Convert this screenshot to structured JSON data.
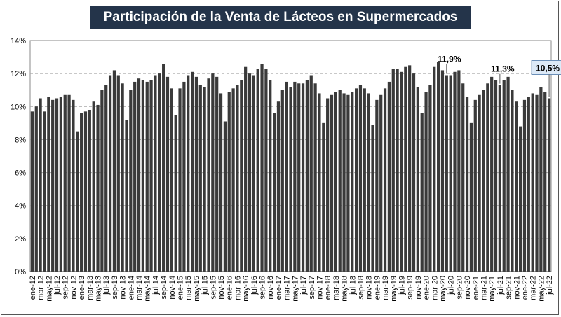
{
  "chart_data": {
    "type": "bar",
    "title": "Participación de la Venta de Lácteos en Supermercados",
    "xlabel": "",
    "ylabel": "",
    "ylim": [
      0,
      14
    ],
    "yticks": [
      "0%",
      "2%",
      "4%",
      "6%",
      "8%",
      "10%",
      "12%",
      "14%"
    ],
    "grid": true,
    "bar_color": "#3a3a3a",
    "categories": [
      "ene-12",
      "feb-12",
      "mar-12",
      "abr-12",
      "may-12",
      "jun-12",
      "jul-12",
      "ago-12",
      "sep-12",
      "oct-12",
      "nov-12",
      "dic-12",
      "ene-13",
      "feb-13",
      "mar-13",
      "abr-13",
      "may-13",
      "jun-13",
      "jul-13",
      "ago-13",
      "sep-13",
      "oct-13",
      "nov-13",
      "dic-13",
      "ene-14",
      "feb-14",
      "mar-14",
      "abr-14",
      "may-14",
      "jun-14",
      "jul-14",
      "ago-14",
      "sep-14",
      "oct-14",
      "nov-14",
      "dic-14",
      "ene-15",
      "feb-15",
      "mar-15",
      "abr-15",
      "may-15",
      "jun-15",
      "jul-15",
      "ago-15",
      "sep-15",
      "oct-15",
      "nov-15",
      "dic-15",
      "ene-16",
      "feb-16",
      "mar-16",
      "abr-16",
      "may-16",
      "jun-16",
      "jul-16",
      "ago-16",
      "sep-16",
      "oct-16",
      "nov-16",
      "dic-16",
      "ene-17",
      "feb-17",
      "mar-17",
      "abr-17",
      "may-17",
      "jun-17",
      "jul-17",
      "ago-17",
      "sep-17",
      "oct-17",
      "nov-17",
      "dic-17",
      "ene-18",
      "feb-18",
      "mar-18",
      "abr-18",
      "may-18",
      "jun-18",
      "jul-18",
      "ago-18",
      "sep-18",
      "oct-18",
      "nov-18",
      "dic-18",
      "ene-19",
      "feb-19",
      "mar-19",
      "abr-19",
      "may-19",
      "jun-19",
      "jul-19",
      "ago-19",
      "sep-19",
      "oct-19",
      "nov-19",
      "dic-19",
      "ene-20",
      "feb-20",
      "mar-20",
      "abr-20",
      "may-20",
      "jun-20",
      "jul-20",
      "ago-20",
      "sep-20",
      "oct-20",
      "nov-20",
      "dic-20",
      "ene-21",
      "feb-21",
      "mar-21",
      "abr-21",
      "may-21",
      "jun-21",
      "jul-21",
      "ago-21",
      "sep-21",
      "oct-21",
      "nov-21",
      "dic-21",
      "ene-22",
      "feb-22",
      "mar-22",
      "abr-22",
      "may-22",
      "jun-22",
      "jul-22"
    ],
    "x_tick_labels": [
      "ene-12",
      "mar-12",
      "may-12",
      "jul-12",
      "sep-12",
      "nov-12",
      "ene-13",
      "mar-13",
      "may-13",
      "jul-13",
      "sep-13",
      "nov-13",
      "ene-14",
      "mar-14",
      "may-14",
      "jul-14",
      "sep-14",
      "nov-14",
      "ene-15",
      "mar-15",
      "may-15",
      "jul-15",
      "sep-15",
      "nov-15",
      "ene-16",
      "mar-16",
      "may-16",
      "jul-16",
      "sep-16",
      "nov-16",
      "ene-17",
      "mar-17",
      "may-17",
      "jul-17",
      "sep-17",
      "nov-17",
      "ene-18",
      "mar-18",
      "may-18",
      "jul-18",
      "sep-18",
      "nov-18",
      "ene-19",
      "mar-19",
      "may-19",
      "jul-19",
      "sep-19",
      "nov-19",
      "ene-20",
      "mar-20",
      "may-20",
      "jul-20",
      "sep-20",
      "nov-20",
      "ene-21",
      "mar-21",
      "may-21",
      "jul-21",
      "sep-21",
      "nov-21",
      "ene-22",
      "mar-22",
      "may-22",
      "jul-22"
    ],
    "values": [
      9.7,
      10.0,
      10.5,
      9.7,
      10.6,
      10.4,
      10.5,
      10.6,
      10.7,
      10.7,
      10.4,
      8.5,
      9.6,
      9.7,
      9.8,
      10.3,
      10.1,
      11.0,
      11.3,
      11.9,
      12.2,
      11.9,
      11.4,
      9.2,
      11.0,
      11.5,
      11.7,
      11.6,
      11.5,
      11.6,
      11.9,
      12.0,
      12.6,
      11.8,
      11.1,
      9.5,
      11.1,
      11.5,
      11.9,
      12.1,
      11.8,
      11.3,
      11.2,
      11.7,
      12.0,
      11.8,
      10.8,
      9.1,
      10.9,
      11.1,
      11.3,
      11.6,
      12.4,
      12.0,
      11.9,
      12.3,
      12.6,
      12.3,
      11.6,
      9.6,
      10.3,
      11.0,
      11.5,
      11.2,
      11.5,
      11.4,
      11.4,
      11.6,
      11.9,
      11.4,
      10.8,
      9.0,
      10.5,
      10.7,
      10.9,
      11.0,
      10.8,
      10.7,
      10.9,
      11.1,
      11.3,
      11.1,
      10.8,
      8.9,
      10.4,
      10.7,
      11.1,
      11.5,
      12.3,
      12.3,
      12.1,
      12.4,
      12.5,
      12.0,
      11.2,
      9.6,
      10.9,
      11.3,
      12.4,
      12.7,
      12.2,
      11.9,
      11.9,
      12.1,
      12.2,
      11.4,
      10.6,
      9.0,
      10.4,
      10.7,
      11.0,
      11.4,
      11.8,
      11.6,
      11.3,
      11.6,
      11.8,
      11.0,
      10.3,
      8.8,
      10.4,
      10.6,
      10.8,
      10.7,
      11.2,
      10.9,
      10.5
    ],
    "annotations": [
      {
        "index": 101,
        "text": "11,9%",
        "boxed": false
      },
      {
        "index": 114,
        "text": "11,3%",
        "boxed": false
      },
      {
        "index": 126,
        "text": "10,5%",
        "boxed": true
      }
    ]
  }
}
